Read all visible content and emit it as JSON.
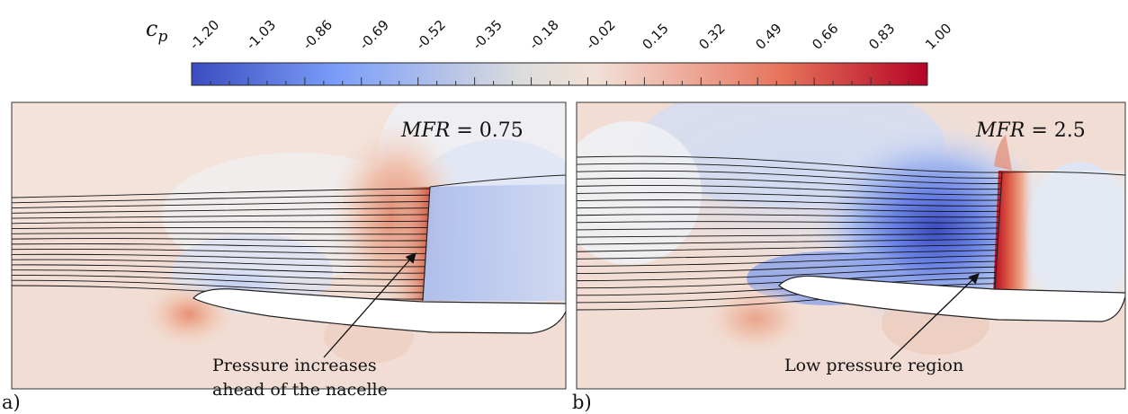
{
  "colorbar": {
    "variable_main": "c",
    "variable_sub": "p",
    "ticks": [
      "-1.20",
      "-1.03",
      "-0.86",
      "-0.69",
      "-0.52",
      "-0.35",
      "-0.18",
      "-0.02",
      "0.15",
      "0.32",
      "0.49",
      "0.66",
      "0.83",
      "1.00"
    ],
    "range": [
      -1.2,
      1.0
    ],
    "cmap": "coolwarm",
    "low_color": "#3b4cc0",
    "mid_color": "#f4f4f4",
    "high_color": "#b40426"
  },
  "panels": [
    {
      "label": "a)",
      "mfr_name": "MFR",
      "mfr_value": "= 0.75",
      "annotation_lines": [
        "Pressure increases",
        "ahead of the nacelle"
      ]
    },
    {
      "label": "b)",
      "mfr_name": "MFR",
      "mfr_value": "= 2.5",
      "annotation_lines": [
        "Low pressure region"
      ]
    }
  ]
}
